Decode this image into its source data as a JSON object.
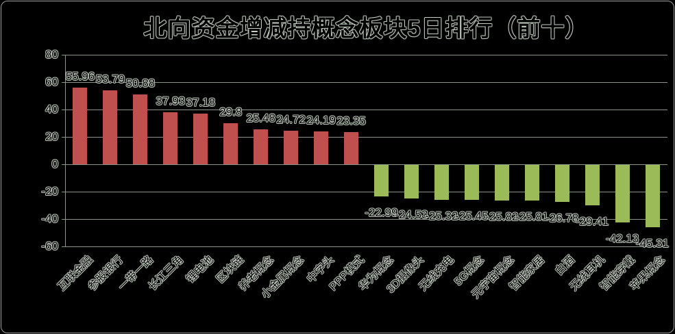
{
  "window": {
    "background": "#000000",
    "border_color": "#9aa49a"
  },
  "chart_data": {
    "type": "bar",
    "title": "北向资金增减持概念板块5日排行（前十）",
    "categories": [
      "互联金融",
      "参股银行",
      "一带一路",
      "长江三角",
      "锂电池",
      "区块链",
      "养老概念",
      "小金属概念",
      "中字头",
      "PPP模式",
      "华为概念",
      "3D摄像头",
      "无线充电",
      "5G概念",
      "元宇宙概念",
      "智能家居",
      "白酒",
      "无线耳机",
      "智能穿戴",
      "苹果概念"
    ],
    "values": [
      55.96,
      53.79,
      50.88,
      37.93,
      37.18,
      29.8,
      25.48,
      24.72,
      24.19,
      23.35,
      -22.99,
      -24.53,
      -25.32,
      -25.45,
      -25.82,
      -25.81,
      -26.78,
      -29.41,
      -42.13,
      -45.31
    ],
    "value_labels": [
      "55.96",
      "53.79",
      "50.88",
      "37.93",
      "37.18",
      "29.8",
      "25.48",
      "24.72",
      "24.19",
      "23.35",
      "-22.99",
      "-24.53",
      "-25.32",
      "-25.45",
      "-25.82",
      "-25.81",
      "-26.78",
      "-29.41",
      "-42.13",
      "-45.31"
    ],
    "y_ticks": [
      80,
      60,
      40,
      20,
      0,
      -20,
      -40,
      -60
    ],
    "y_tick_labels": [
      "80",
      "60",
      "40",
      "20",
      "0",
      "-20",
      "-40",
      "-60"
    ],
    "ylim": [
      -60,
      80
    ],
    "grid": true,
    "legend": "none",
    "xlabel": "",
    "ylabel": "",
    "positive_color": "#c0504d",
    "negative_color": "#9bbb59",
    "gridline_color": "#8c988c",
    "text_outline_color": "#c6d2c4"
  }
}
